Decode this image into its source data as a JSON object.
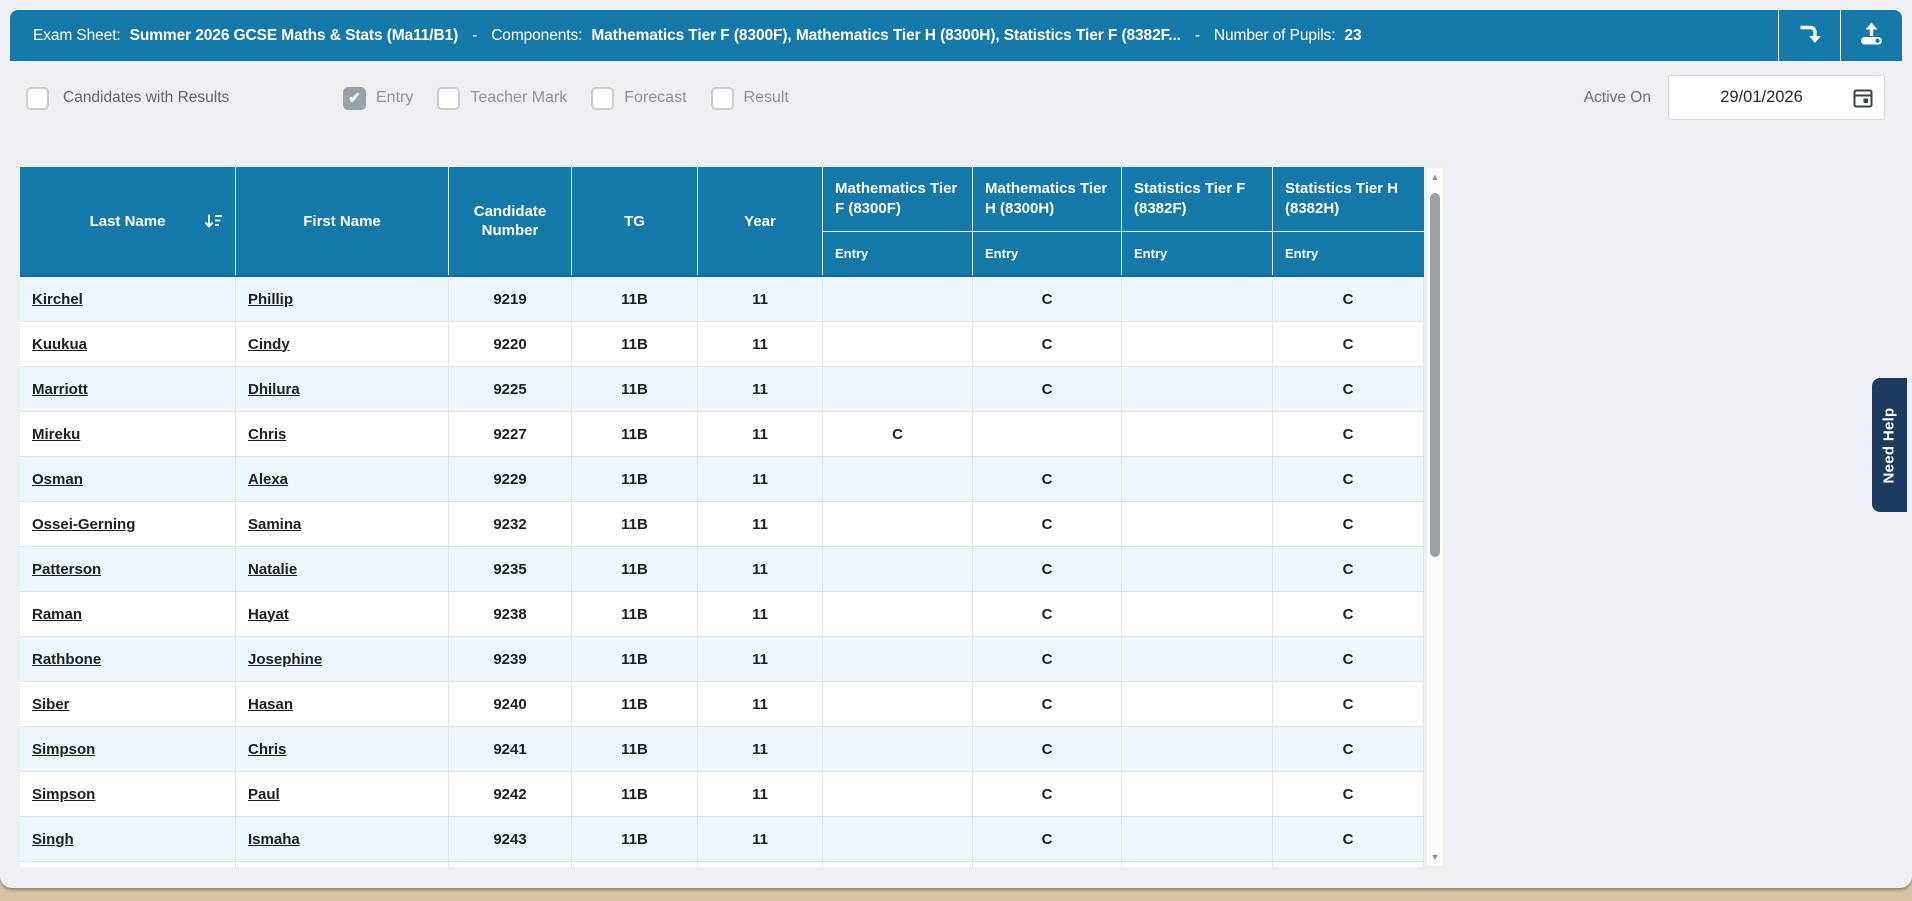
{
  "colors": {
    "accent_teal": "#1478a8",
    "need_help_bg": "#1e3a5f",
    "row_alt_bg": "#ecf6fc",
    "desktop_strip": "#d8c5a6"
  },
  "topbar": {
    "exam_sheet_label": "Exam Sheet:",
    "exam_sheet_value": "Summer 2026 GCSE Maths & Stats (Ma11/B1)",
    "dash": "-",
    "components_label": "Components:",
    "components_value": "Mathematics Tier F (8300F), Mathematics Tier H (8300H), Statistics Tier F (8382F...",
    "pupils_label": "Number of Pupils:",
    "pupils_value": "23",
    "buttons": [
      {
        "icon": "import-down-arrow-icon"
      },
      {
        "icon": "upload-icon"
      }
    ]
  },
  "filters": {
    "candidates_with_results": {
      "label": "Candidates with Results",
      "checked": false
    },
    "columns": [
      {
        "label": "Entry",
        "checked": true
      },
      {
        "label": "Teacher Mark",
        "checked": false
      },
      {
        "label": "Forecast",
        "checked": false
      },
      {
        "label": "Result",
        "checked": false
      }
    ],
    "active_on_label": "Active On",
    "active_on_value": "29/01/2026",
    "calendar_icon": "calendar-icon"
  },
  "table": {
    "columns": [
      {
        "label": "Last Name",
        "sorted": true,
        "sort_icon": "sort-descending-icon"
      },
      {
        "label": "First Name"
      },
      {
        "label": "Candidate Number"
      },
      {
        "label": "TG"
      },
      {
        "label": "Year"
      }
    ],
    "component_columns": [
      {
        "title": "Mathematics Tier F (8300F)",
        "sub_label": "Entry"
      },
      {
        "title": "Mathematics Tier H (8300H)",
        "sub_label": "Entry"
      },
      {
        "title": "Statistics Tier F (8382F)",
        "sub_label": "Entry"
      },
      {
        "title": "Statistics Tier H (8382H)",
        "sub_label": "Entry"
      }
    ],
    "rows": [
      {
        "last": "Kirchel",
        "first": "Phillip",
        "number": "9219",
        "tg": "11B",
        "year": "11",
        "math_f": "",
        "math_h": "C",
        "stats_f": "",
        "stats_h": "C"
      },
      {
        "last": "Kuukua",
        "first": "Cindy",
        "number": "9220",
        "tg": "11B",
        "year": "11",
        "math_f": "",
        "math_h": "C",
        "stats_f": "",
        "stats_h": "C"
      },
      {
        "last": "Marriott",
        "first": "Dhilura",
        "number": "9225",
        "tg": "11B",
        "year": "11",
        "math_f": "",
        "math_h": "C",
        "stats_f": "",
        "stats_h": "C"
      },
      {
        "last": "Mireku",
        "first": "Chris",
        "number": "9227",
        "tg": "11B",
        "year": "11",
        "math_f": "C",
        "math_h": "",
        "stats_f": "",
        "stats_h": "C"
      },
      {
        "last": "Osman",
        "first": "Alexa",
        "number": "9229",
        "tg": "11B",
        "year": "11",
        "math_f": "",
        "math_h": "C",
        "stats_f": "",
        "stats_h": "C"
      },
      {
        "last": "Ossei-Gerning",
        "first": "Samina",
        "number": "9232",
        "tg": "11B",
        "year": "11",
        "math_f": "",
        "math_h": "C",
        "stats_f": "",
        "stats_h": "C"
      },
      {
        "last": "Patterson",
        "first": "Natalie",
        "number": "9235",
        "tg": "11B",
        "year": "11",
        "math_f": "",
        "math_h": "C",
        "stats_f": "",
        "stats_h": "C"
      },
      {
        "last": "Raman",
        "first": "Hayat",
        "number": "9238",
        "tg": "11B",
        "year": "11",
        "math_f": "",
        "math_h": "C",
        "stats_f": "",
        "stats_h": "C"
      },
      {
        "last": "Rathbone",
        "first": "Josephine",
        "number": "9239",
        "tg": "11B",
        "year": "11",
        "math_f": "",
        "math_h": "C",
        "stats_f": "",
        "stats_h": "C"
      },
      {
        "last": "Siber",
        "first": "Hasan",
        "number": "9240",
        "tg": "11B",
        "year": "11",
        "math_f": "",
        "math_h": "C",
        "stats_f": "",
        "stats_h": "C"
      },
      {
        "last": "Simpson",
        "first": "Chris",
        "number": "9241",
        "tg": "11B",
        "year": "11",
        "math_f": "",
        "math_h": "C",
        "stats_f": "",
        "stats_h": "C"
      },
      {
        "last": "Simpson",
        "first": "Paul",
        "number": "9242",
        "tg": "11B",
        "year": "11",
        "math_f": "",
        "math_h": "C",
        "stats_f": "",
        "stats_h": "C"
      },
      {
        "last": "Singh",
        "first": "Ismaha",
        "number": "9243",
        "tg": "11B",
        "year": "11",
        "math_f": "",
        "math_h": "C",
        "stats_f": "",
        "stats_h": "C"
      }
    ]
  },
  "need_help": {
    "label": "Need Help"
  }
}
